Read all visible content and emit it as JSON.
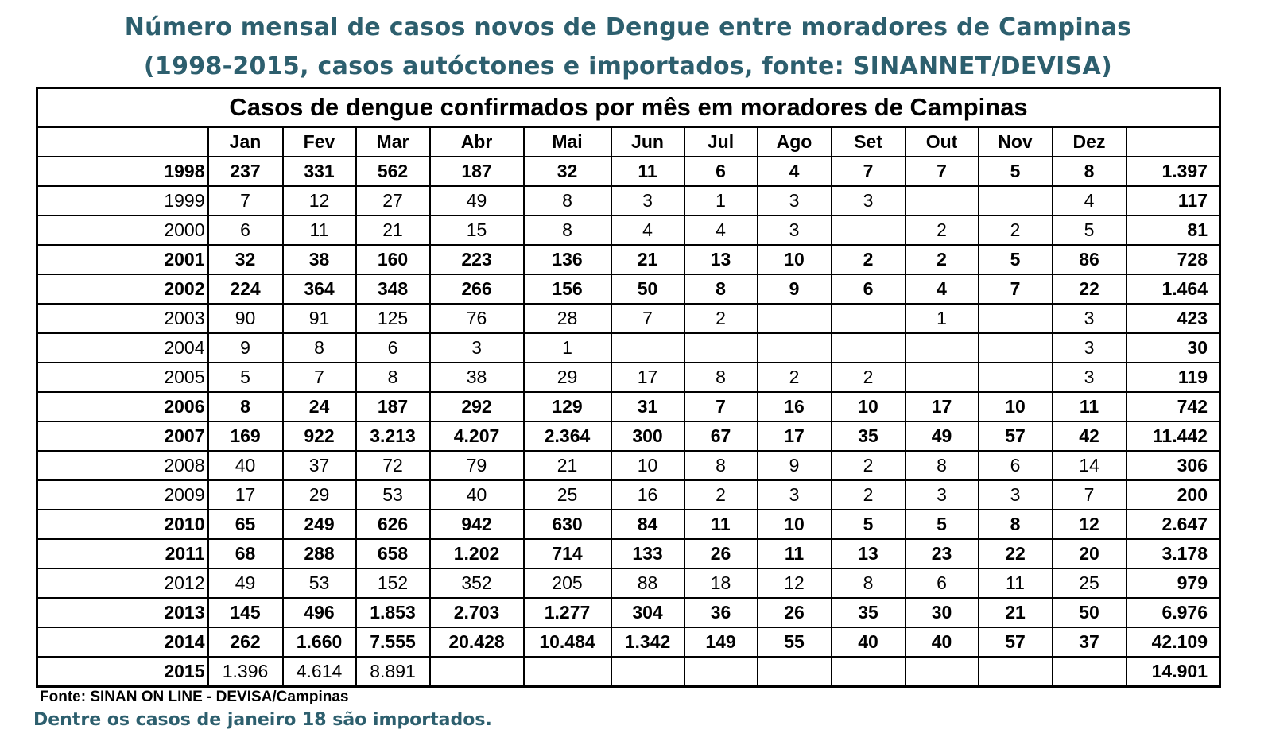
{
  "title_line1": "Número mensal de casos novos de Dengue entre moradores de Campinas",
  "title_line2": "(1998-2015, casos autóctones e importados, fonte: SINANNET/DEVISA)",
  "table": {
    "caption": "Casos de dengue confirmados por mês em moradores de Campinas",
    "columns": [
      "",
      "Jan",
      "Fev",
      "Mar",
      "Abr",
      "Mai",
      "Jun",
      "Jul",
      "Ago",
      "Set",
      "Out",
      "Nov",
      "Dez",
      ""
    ],
    "rows": [
      {
        "year": "1998",
        "bold": true,
        "values": [
          "237",
          "331",
          "562",
          "187",
          "32",
          "11",
          "6",
          "4",
          "7",
          "7",
          "5",
          "8"
        ],
        "total": "1.397"
      },
      {
        "year": "1999",
        "bold": false,
        "values": [
          "7",
          "12",
          "27",
          "49",
          "8",
          "3",
          "1",
          "3",
          "3",
          "",
          "",
          "4"
        ],
        "total": "117"
      },
      {
        "year": "2000",
        "bold": false,
        "values": [
          "6",
          "11",
          "21",
          "15",
          "8",
          "4",
          "4",
          "3",
          "",
          "2",
          "2",
          "5"
        ],
        "total": "81"
      },
      {
        "year": "2001",
        "bold": true,
        "values": [
          "32",
          "38",
          "160",
          "223",
          "136",
          "21",
          "13",
          "10",
          "2",
          "2",
          "5",
          "86"
        ],
        "total": "728"
      },
      {
        "year": "2002",
        "bold": true,
        "values": [
          "224",
          "364",
          "348",
          "266",
          "156",
          "50",
          "8",
          "9",
          "6",
          "4",
          "7",
          "22"
        ],
        "total": "1.464"
      },
      {
        "year": "2003",
        "bold": false,
        "values": [
          "90",
          "91",
          "125",
          "76",
          "28",
          "7",
          "2",
          "",
          "",
          "1",
          "",
          "3"
        ],
        "total": "423"
      },
      {
        "year": "2004",
        "bold": false,
        "values": [
          "9",
          "8",
          "6",
          "3",
          "1",
          "",
          "",
          "",
          "",
          "",
          "",
          "3"
        ],
        "total": "30"
      },
      {
        "year": "2005",
        "bold": false,
        "values": [
          "5",
          "7",
          "8",
          "38",
          "29",
          "17",
          "8",
          "2",
          "2",
          "",
          "",
          "3"
        ],
        "total": "119"
      },
      {
        "year": "2006",
        "bold": true,
        "values": [
          "8",
          "24",
          "187",
          "292",
          "129",
          "31",
          "7",
          "16",
          "10",
          "17",
          "10",
          "11"
        ],
        "total": "742"
      },
      {
        "year": "2007",
        "bold": true,
        "values": [
          "169",
          "922",
          "3.213",
          "4.207",
          "2.364",
          "300",
          "67",
          "17",
          "35",
          "49",
          "57",
          "42"
        ],
        "total": "11.442"
      },
      {
        "year": "2008",
        "bold": false,
        "values": [
          "40",
          "37",
          "72",
          "79",
          "21",
          "10",
          "8",
          "9",
          "2",
          "8",
          "6",
          "14"
        ],
        "total": "306"
      },
      {
        "year": "2009",
        "bold": false,
        "values": [
          "17",
          "29",
          "53",
          "40",
          "25",
          "16",
          "2",
          "3",
          "2",
          "3",
          "3",
          "7"
        ],
        "total": "200"
      },
      {
        "year": "2010",
        "bold": true,
        "values": [
          "65",
          "249",
          "626",
          "942",
          "630",
          "84",
          "11",
          "10",
          "5",
          "5",
          "8",
          "12"
        ],
        "total": "2.647"
      },
      {
        "year": "2011",
        "bold": true,
        "values": [
          "68",
          "288",
          "658",
          "1.202",
          "714",
          "133",
          "26",
          "11",
          "13",
          "23",
          "22",
          "20"
        ],
        "total": "3.178"
      },
      {
        "year": "2012",
        "bold": false,
        "values": [
          "49",
          "53",
          "152",
          "352",
          "205",
          "88",
          "18",
          "12",
          "8",
          "6",
          "11",
          "25"
        ],
        "total": "979"
      },
      {
        "year": "2013",
        "bold": true,
        "values": [
          "145",
          "496",
          "1.853",
          "2.703",
          "1.277",
          "304",
          "36",
          "26",
          "35",
          "30",
          "21",
          "50"
        ],
        "total": "6.976"
      },
      {
        "year": "2014",
        "bold": true,
        "values": [
          "262",
          "1.660",
          "7.555",
          "20.428",
          "10.484",
          "1.342",
          "149",
          "55",
          "40",
          "40",
          "57",
          "37"
        ],
        "total": "42.109"
      },
      {
        "year": "2015",
        "bold": false,
        "yearBold": true,
        "values": [
          "1.396",
          "4.614",
          "8.891",
          "",
          "",
          "",
          "",
          "",
          "",
          "",
          "",
          ""
        ],
        "total": "14.901"
      }
    ]
  },
  "source": "Fonte: SINAN ON LINE - DEVISA/Campinas",
  "note": "Dentre os casos de janeiro 18 são importados.",
  "colors": {
    "title": "#2d5f6e",
    "note": "#2d5f6e"
  }
}
